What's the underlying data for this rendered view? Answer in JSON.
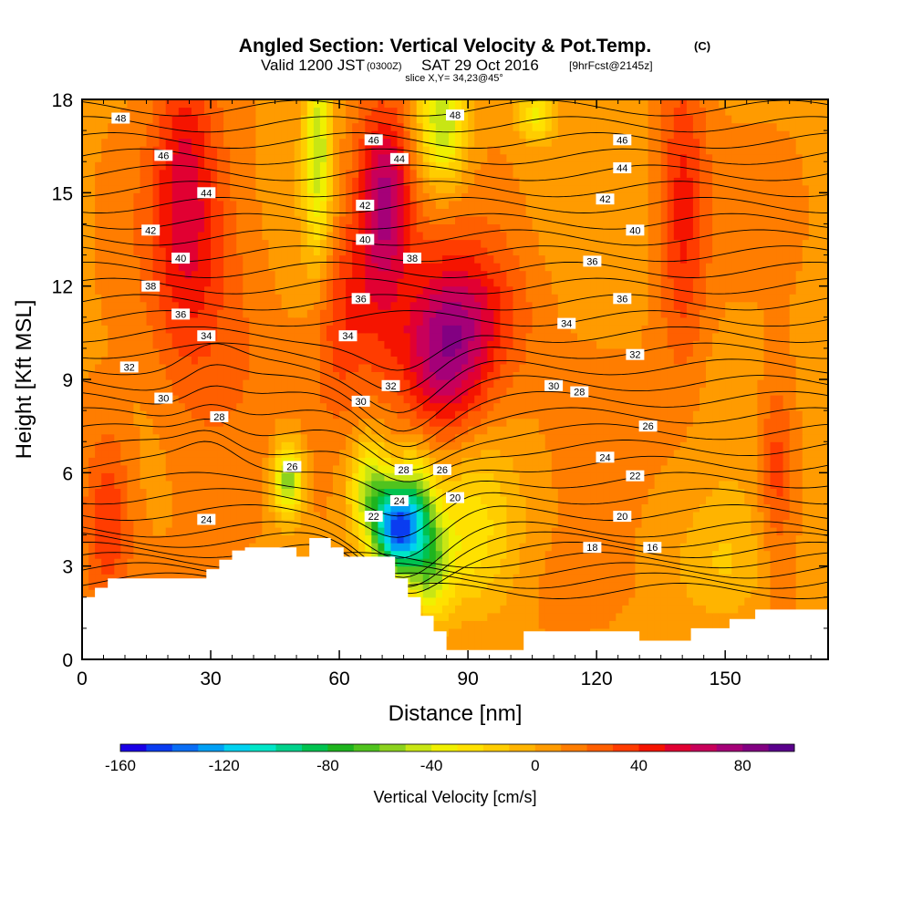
{
  "header": {
    "title_main": "Angled Section: Vertical Velocity & Pot.Temp.",
    "title_unit": "(C)",
    "valid_label": "Valid 1200 JST",
    "valid_utc": "(0300Z)",
    "valid_date": "SAT 29 Oct 2016",
    "forecast_tag": "[9hrFcst@2145z]",
    "slice_label": "slice X,Y= 34,23@45°"
  },
  "chart_data": {
    "type": "heatmap",
    "title": "Angled Section: Vertical Velocity & Pot.Temp. (C)",
    "xlabel": "Distance [nm]",
    "ylabel": "Height [Kft MSL]",
    "xlim": [
      0,
      174
    ],
    "ylim": [
      0,
      18
    ],
    "xticks": [
      0,
      30,
      60,
      90,
      120,
      150
    ],
    "yticks": [
      0,
      3,
      6,
      9,
      12,
      15,
      18
    ],
    "grid": false,
    "colorbar": {
      "label": "Vertical Velocity [cm/s]",
      "min": -160,
      "max": 100,
      "step": 10,
      "tick_labels": [
        -160,
        -120,
        -80,
        -40,
        0,
        40,
        80
      ],
      "colors": [
        "#1a00e6",
        "#0a3cf0",
        "#0a6ef5",
        "#00a0f5",
        "#00d2f0",
        "#00e6c8",
        "#00d28c",
        "#00c350",
        "#1eb41e",
        "#50c31e",
        "#8cd21e",
        "#c8e614",
        "#f0f000",
        "#ffe100",
        "#ffcd00",
        "#ffb400",
        "#ff9b00",
        "#ff7d00",
        "#ff5f00",
        "#ff3c00",
        "#f51400",
        "#e10032",
        "#c8005a",
        "#a50078",
        "#820082",
        "#5a008c"
      ]
    },
    "theta_contours": {
      "units": "C",
      "levels": [
        16,
        18,
        20,
        22,
        24,
        26,
        28,
        30,
        32,
        34,
        36,
        38,
        40,
        42,
        44,
        46,
        48
      ],
      "labels": [
        {
          "text": "48",
          "x": 9,
          "y": 17.4
        },
        {
          "text": "46",
          "x": 19,
          "y": 16.2
        },
        {
          "text": "44",
          "x": 29,
          "y": 15.0
        },
        {
          "text": "42",
          "x": 16,
          "y": 13.8
        },
        {
          "text": "40",
          "x": 23,
          "y": 12.9
        },
        {
          "text": "38",
          "x": 16,
          "y": 12.0
        },
        {
          "text": "36",
          "x": 23,
          "y": 11.1
        },
        {
          "text": "34",
          "x": 29,
          "y": 10.4
        },
        {
          "text": "32",
          "x": 11,
          "y": 9.4
        },
        {
          "text": "30",
          "x": 19,
          "y": 8.4
        },
        {
          "text": "28",
          "x": 32,
          "y": 7.8
        },
        {
          "text": "26",
          "x": 49,
          "y": 6.2
        },
        {
          "text": "24",
          "x": 29,
          "y": 4.5
        },
        {
          "text": "48",
          "x": 87,
          "y": 17.5
        },
        {
          "text": "46",
          "x": 68,
          "y": 16.7
        },
        {
          "text": "44",
          "x": 74,
          "y": 16.1
        },
        {
          "text": "42",
          "x": 66,
          "y": 14.6
        },
        {
          "text": "40",
          "x": 66,
          "y": 13.5
        },
        {
          "text": "38",
          "x": 77,
          "y": 12.9
        },
        {
          "text": "36",
          "x": 65,
          "y": 11.6
        },
        {
          "text": "34",
          "x": 62,
          "y": 10.4
        },
        {
          "text": "32",
          "x": 72,
          "y": 8.8
        },
        {
          "text": "30",
          "x": 65,
          "y": 8.3
        },
        {
          "text": "28",
          "x": 75,
          "y": 6.1
        },
        {
          "text": "26",
          "x": 84,
          "y": 6.1
        },
        {
          "text": "24",
          "x": 74,
          "y": 5.1
        },
        {
          "text": "22",
          "x": 68,
          "y": 4.6
        },
        {
          "text": "20",
          "x": 87,
          "y": 5.2
        },
        {
          "text": "46",
          "x": 126,
          "y": 16.7
        },
        {
          "text": "44",
          "x": 126,
          "y": 15.8
        },
        {
          "text": "42",
          "x": 122,
          "y": 14.8
        },
        {
          "text": "40",
          "x": 129,
          "y": 13.8
        },
        {
          "text": "36",
          "x": 119,
          "y": 12.8
        },
        {
          "text": "36",
          "x": 126,
          "y": 11.6
        },
        {
          "text": "34",
          "x": 113,
          "y": 10.8
        },
        {
          "text": "32",
          "x": 129,
          "y": 9.8
        },
        {
          "text": "30",
          "x": 110,
          "y": 8.8
        },
        {
          "text": "28",
          "x": 116,
          "y": 8.6
        },
        {
          "text": "26",
          "x": 132,
          "y": 7.5
        },
        {
          "text": "24",
          "x": 122,
          "y": 6.5
        },
        {
          "text": "22",
          "x": 129,
          "y": 5.9
        },
        {
          "text": "20",
          "x": 126,
          "y": 4.6
        },
        {
          "text": "18",
          "x": 119,
          "y": 3.6
        },
        {
          "text": "16",
          "x": 133,
          "y": 3.6
        }
      ]
    },
    "terrain": {
      "x": [
        0,
        3,
        3,
        6,
        6,
        29,
        29,
        32,
        32,
        35,
        35,
        38,
        38,
        41,
        41,
        44,
        44,
        50,
        50,
        53,
        53,
        58,
        58,
        61,
        61,
        73,
        73,
        76,
        76,
        79,
        79,
        82,
        82,
        85,
        85,
        103,
        103,
        130,
        130,
        142,
        142,
        151,
        151,
        157,
        157,
        160,
        160,
        174,
        174,
        0
      ],
      "y": [
        2.0,
        2.0,
        2.3,
        2.3,
        2.6,
        2.6,
        2.9,
        2.9,
        3.2,
        3.2,
        3.5,
        3.5,
        3.6,
        3.6,
        3.6,
        3.6,
        3.6,
        3.6,
        3.3,
        3.3,
        3.9,
        3.9,
        3.6,
        3.6,
        3.3,
        3.3,
        2.6,
        2.6,
        2.0,
        2.0,
        1.4,
        1.4,
        0.9,
        0.9,
        0.3,
        0.3,
        0.9,
        0.9,
        0.6,
        0.6,
        1.0,
        1.0,
        1.3,
        1.3,
        1.6,
        1.6,
        1.6,
        1.6,
        0,
        0
      ]
    },
    "velocity_features": [
      {
        "x": 6,
        "y": 4.6,
        "value": 30,
        "sx": 4,
        "sy": 2.2
      },
      {
        "x": 24,
        "y": 15.5,
        "value": 35,
        "sx": 5,
        "sy": 3.2
      },
      {
        "x": 28,
        "y": 11,
        "value": 20,
        "sx": 10,
        "sy": 4
      },
      {
        "x": 55,
        "y": 16.5,
        "value": -55,
        "sx": 2.2,
        "sy": 2.5
      },
      {
        "x": 60,
        "y": 11,
        "value": 25,
        "sx": 4,
        "sy": 2
      },
      {
        "x": 69,
        "y": 13.3,
        "value": 40,
        "sx": 5,
        "sy": 2.8
      },
      {
        "x": 71,
        "y": 15.3,
        "value": 35,
        "sx": 4,
        "sy": 1.8
      },
      {
        "x": 84,
        "y": 17.2,
        "value": -60,
        "sx": 4,
        "sy": 1.4
      },
      {
        "x": 106,
        "y": 17.5,
        "value": -40,
        "sx": 3,
        "sy": 0.6
      },
      {
        "x": 84,
        "y": 9.5,
        "value": 55,
        "sx": 7,
        "sy": 2
      },
      {
        "x": 91,
        "y": 11,
        "value": 35,
        "sx": 9,
        "sy": 1.8
      },
      {
        "x": 140,
        "y": 14.5,
        "value": 35,
        "sx": 4,
        "sy": 3.5
      },
      {
        "x": 162,
        "y": 6.2,
        "value": 30,
        "sx": 3,
        "sy": 2.2
      },
      {
        "x": 48,
        "y": 5.8,
        "value": -70,
        "sx": 2.5,
        "sy": 0.9
      },
      {
        "x": 67,
        "y": 5.5,
        "value": -55,
        "sx": 3.5,
        "sy": 1.2
      },
      {
        "x": 73,
        "y": 4.2,
        "value": -130,
        "sx": 3.5,
        "sy": 1.0
      },
      {
        "x": 78,
        "y": 4.5,
        "value": -60,
        "sx": 3,
        "sy": 1.5
      },
      {
        "x": 82,
        "y": 3.0,
        "value": -40,
        "sx": 3,
        "sy": 1.2
      },
      {
        "x": 90,
        "y": 4.0,
        "value": -35,
        "sx": 8,
        "sy": 2
      },
      {
        "x": 117,
        "y": 2.0,
        "value": 10,
        "sx": 10,
        "sy": 1.5
      },
      {
        "x": 150,
        "y": 3.0,
        "value": -20,
        "sx": 8,
        "sy": 1.5
      }
    ]
  }
}
